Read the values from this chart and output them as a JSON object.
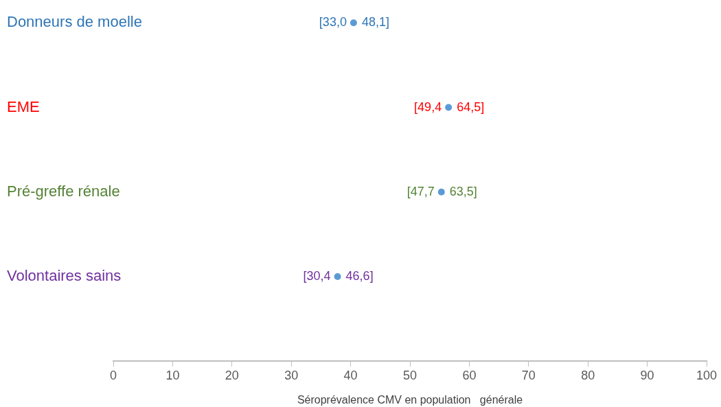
{
  "chart_data": {
    "type": "scatter",
    "orientation": "horizontal",
    "categories": [
      "Donneurs de moelle",
      "EME",
      "Pré-greffe rénale",
      "Volontaires sains"
    ],
    "values": [
      40.5,
      56.5,
      55.3,
      37.8
    ],
    "value_labels": [
      "[33,0 48,1]",
      "[49,4 64,5]",
      "[47,7 63,5]",
      "[30,4 46,6]"
    ],
    "color": "#5b9bd5",
    "marker": "circle",
    "xlabel": "Séroprévalence CMV en population   générale",
    "xlim": [
      0,
      100
    ],
    "xticks": [
      0,
      10,
      20,
      30,
      40,
      50,
      60,
      70,
      80,
      90,
      100
    ],
    "grid": false,
    "legend": false
  }
}
